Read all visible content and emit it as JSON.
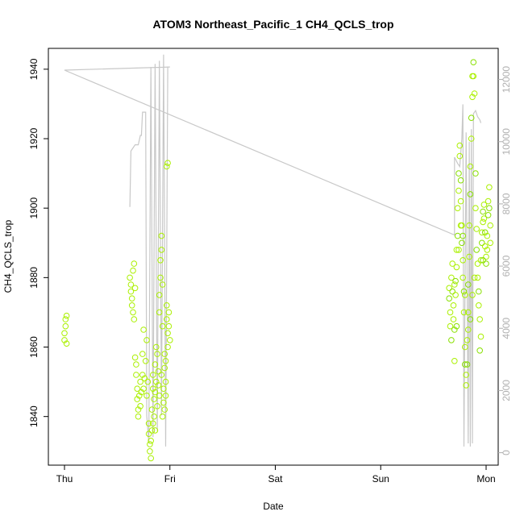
{
  "chart_data": {
    "type": "scatter",
    "title": "ATOM3 Northeast_Pacific_1 CH4_QCLS_trop",
    "xlabel": "Date",
    "ylabel": "CH4_QCLS_trop",
    "x_ticks": [
      "Thu",
      "Fri",
      "Sat",
      "Sun",
      "Mon"
    ],
    "xlim": [
      0,
      4.1
    ],
    "ylim": [
      1826,
      1946
    ],
    "y_ticks": [
      1840,
      1860,
      1880,
      1900,
      1920,
      1940
    ],
    "y2_ticks": [
      0,
      2000,
      4000,
      6000,
      8000,
      10000,
      12000
    ],
    "y2lim": [
      -400,
      13000
    ],
    "colors": {
      "points": "#aaf000",
      "points_dark": "#88e000",
      "altitude_line": "#c8c8c8",
      "axis": "#000000",
      "axis_right": "#b0b0b0"
    },
    "series": [
      {
        "type": "scatter",
        "axis": "left",
        "values": [
          [
            0.0,
            1862
          ],
          [
            0.0,
            1864
          ],
          [
            0.01,
            1866
          ],
          [
            0.01,
            1868
          ],
          [
            0.02,
            1869
          ],
          [
            0.02,
            1861
          ],
          [
            0.62,
            1880
          ],
          [
            0.63,
            1878
          ],
          [
            0.63,
            1876
          ],
          [
            0.64,
            1874
          ],
          [
            0.64,
            1872
          ],
          [
            0.65,
            1870
          ],
          [
            0.65,
            1882
          ],
          [
            0.66,
            1884
          ],
          [
            0.66,
            1868
          ],
          [
            0.67,
            1877
          ],
          [
            0.67,
            1857
          ],
          [
            0.68,
            1855
          ],
          [
            0.68,
            1852
          ],
          [
            0.69,
            1848
          ],
          [
            0.69,
            1845
          ],
          [
            0.7,
            1842
          ],
          [
            0.7,
            1840
          ],
          [
            0.71,
            1846
          ],
          [
            0.72,
            1850
          ],
          [
            0.72,
            1843
          ],
          [
            0.73,
            1847
          ],
          [
            0.74,
            1852
          ],
          [
            0.74,
            1858
          ],
          [
            0.75,
            1865
          ],
          [
            0.75,
            1848
          ],
          [
            0.76,
            1851
          ],
          [
            0.77,
            1856
          ],
          [
            0.78,
            1862
          ],
          [
            0.78,
            1846
          ],
          [
            0.79,
            1850
          ],
          [
            0.8,
            1838
          ],
          [
            0.8,
            1835
          ],
          [
            0.81,
            1832
          ],
          [
            0.81,
            1830
          ],
          [
            0.82,
            1828
          ],
          [
            0.82,
            1833
          ],
          [
            0.83,
            1836
          ],
          [
            0.83,
            1842
          ],
          [
            0.84,
            1848
          ],
          [
            0.84,
            1852
          ],
          [
            0.85,
            1845
          ],
          [
            0.85,
            1840
          ],
          [
            0.86,
            1847
          ],
          [
            0.86,
            1855
          ],
          [
            0.87,
            1860
          ],
          [
            0.87,
            1850
          ],
          [
            0.88,
            1858
          ],
          [
            0.88,
            1843
          ],
          [
            0.89,
            1849
          ],
          [
            0.89,
            1853
          ],
          [
            0.9,
            1870
          ],
          [
            0.9,
            1875
          ],
          [
            0.91,
            1880
          ],
          [
            0.91,
            1885
          ],
          [
            0.92,
            1888
          ],
          [
            0.92,
            1892
          ],
          [
            0.93,
            1878
          ],
          [
            0.93,
            1866
          ],
          [
            0.94,
            1848
          ],
          [
            0.94,
            1844
          ],
          [
            0.95,
            1854
          ],
          [
            0.95,
            1858
          ],
          [
            0.96,
            1850
          ],
          [
            0.96,
            1846
          ],
          [
            0.97,
            1872
          ],
          [
            0.97,
            1868
          ],
          [
            0.98,
            1864
          ],
          [
            0.98,
            1860
          ],
          [
            0.97,
            1912
          ],
          [
            0.98,
            1913
          ],
          [
            0.99,
            1866
          ],
          [
            0.99,
            1870
          ],
          [
            1.0,
            1862
          ],
          [
            0.95,
            1842
          ],
          [
            0.93,
            1840
          ],
          [
            0.84,
            1838
          ],
          [
            0.86,
            1836
          ],
          [
            0.9,
            1846
          ],
          [
            0.92,
            1852
          ],
          [
            0.96,
            1856
          ],
          [
            3.65,
            1877
          ],
          [
            3.65,
            1874
          ],
          [
            3.66,
            1870
          ],
          [
            3.66,
            1866
          ],
          [
            3.67,
            1862
          ],
          [
            3.67,
            1880
          ],
          [
            3.68,
            1884
          ],
          [
            3.68,
            1876
          ],
          [
            3.69,
            1872
          ],
          [
            3.69,
            1868
          ],
          [
            3.7,
            1865
          ],
          [
            3.7,
            1856
          ],
          [
            3.71,
            1875
          ],
          [
            3.71,
            1879
          ],
          [
            3.72,
            1883
          ],
          [
            3.72,
            1888
          ],
          [
            3.73,
            1892
          ],
          [
            3.73,
            1900
          ],
          [
            3.74,
            1905
          ],
          [
            3.74,
            1910
          ],
          [
            3.75,
            1915
          ],
          [
            3.75,
            1918
          ],
          [
            3.76,
            1908
          ],
          [
            3.76,
            1902
          ],
          [
            3.77,
            1895
          ],
          [
            3.77,
            1890
          ],
          [
            3.78,
            1885
          ],
          [
            3.78,
            1880
          ],
          [
            3.79,
            1876
          ],
          [
            3.79,
            1870
          ],
          [
            3.8,
            1860
          ],
          [
            3.8,
            1855
          ],
          [
            3.81,
            1852
          ],
          [
            3.81,
            1849
          ],
          [
            3.82,
            1855
          ],
          [
            3.82,
            1862
          ],
          [
            3.83,
            1870
          ],
          [
            3.83,
            1878
          ],
          [
            3.84,
            1886
          ],
          [
            3.84,
            1895
          ],
          [
            3.85,
            1904
          ],
          [
            3.85,
            1912
          ],
          [
            3.86,
            1920
          ],
          [
            3.86,
            1926
          ],
          [
            3.87,
            1932
          ],
          [
            3.87,
            1938
          ],
          [
            3.88,
            1942
          ],
          [
            3.88,
            1938
          ],
          [
            3.89,
            1933
          ],
          [
            3.9,
            1910
          ],
          [
            3.9,
            1900
          ],
          [
            3.91,
            1894
          ],
          [
            3.91,
            1888
          ],
          [
            3.92,
            1884
          ],
          [
            3.92,
            1880
          ],
          [
            3.93,
            1876
          ],
          [
            3.93,
            1872
          ],
          [
            3.94,
            1868
          ],
          [
            3.94,
            1859
          ],
          [
            3.95,
            1863
          ],
          [
            3.95,
            1885
          ],
          [
            3.96,
            1890
          ],
          [
            3.96,
            1893
          ],
          [
            3.97,
            1896
          ],
          [
            3.97,
            1899
          ],
          [
            3.98,
            1901
          ],
          [
            3.98,
            1897
          ],
          [
            3.99,
            1893
          ],
          [
            3.99,
            1889
          ],
          [
            4.0,
            1886
          ],
          [
            4.0,
            1884
          ],
          [
            4.01,
            1888
          ],
          [
            4.01,
            1892
          ],
          [
            4.02,
            1898
          ],
          [
            4.02,
            1902
          ],
          [
            4.03,
            1906
          ],
          [
            4.03,
            1900
          ],
          [
            4.04,
            1895
          ],
          [
            4.04,
            1890
          ],
          [
            3.97,
            1885
          ],
          [
            3.89,
            1880
          ],
          [
            3.87,
            1875
          ],
          [
            3.85,
            1868
          ],
          [
            3.83,
            1865
          ],
          [
            3.8,
            1875
          ],
          [
            3.78,
            1892
          ],
          [
            3.76,
            1895
          ],
          [
            3.74,
            1888
          ],
          [
            3.72,
            1866
          ],
          [
            3.7,
            1878
          ]
        ]
      },
      {
        "type": "line",
        "axis": "right",
        "name": "altitude",
        "values": [
          [
            0.62,
            7900
          ],
          [
            0.63,
            9700
          ],
          [
            0.65,
            9800
          ],
          [
            0.67,
            9900
          ],
          [
            0.7,
            9900
          ],
          [
            0.72,
            10200
          ],
          [
            0.73,
            10200
          ],
          [
            0.74,
            10950
          ],
          [
            0.77,
            10950
          ],
          [
            0.78,
            1200
          ],
          [
            0.8,
            300
          ],
          [
            0.82,
            12400
          ],
          [
            0.84,
            500
          ],
          [
            0.86,
            12500
          ],
          [
            0.88,
            700
          ],
          [
            0.9,
            12600
          ],
          [
            0.92,
            1200
          ],
          [
            0.94,
            12800
          ],
          [
            0.96,
            200
          ],
          [
            0.98,
            12400
          ],
          [
            1.0,
            12400
          ],
          [
            0.0,
            12300
          ],
          [
            3.7,
            7000
          ],
          [
            3.7,
            9500
          ],
          [
            3.73,
            9300
          ],
          [
            3.75,
            9200
          ],
          [
            3.77,
            10100
          ],
          [
            3.78,
            11200
          ],
          [
            3.79,
            200
          ],
          [
            3.81,
            10300
          ],
          [
            3.83,
            300
          ],
          [
            3.84,
            10000
          ],
          [
            3.85,
            200
          ],
          [
            3.86,
            10400
          ],
          [
            3.87,
            300
          ],
          [
            3.88,
            10900
          ],
          [
            3.9,
            11000
          ],
          [
            3.92,
            10800
          ],
          [
            3.94,
            10700
          ],
          [
            3.95,
            10600
          ]
        ]
      }
    ]
  }
}
